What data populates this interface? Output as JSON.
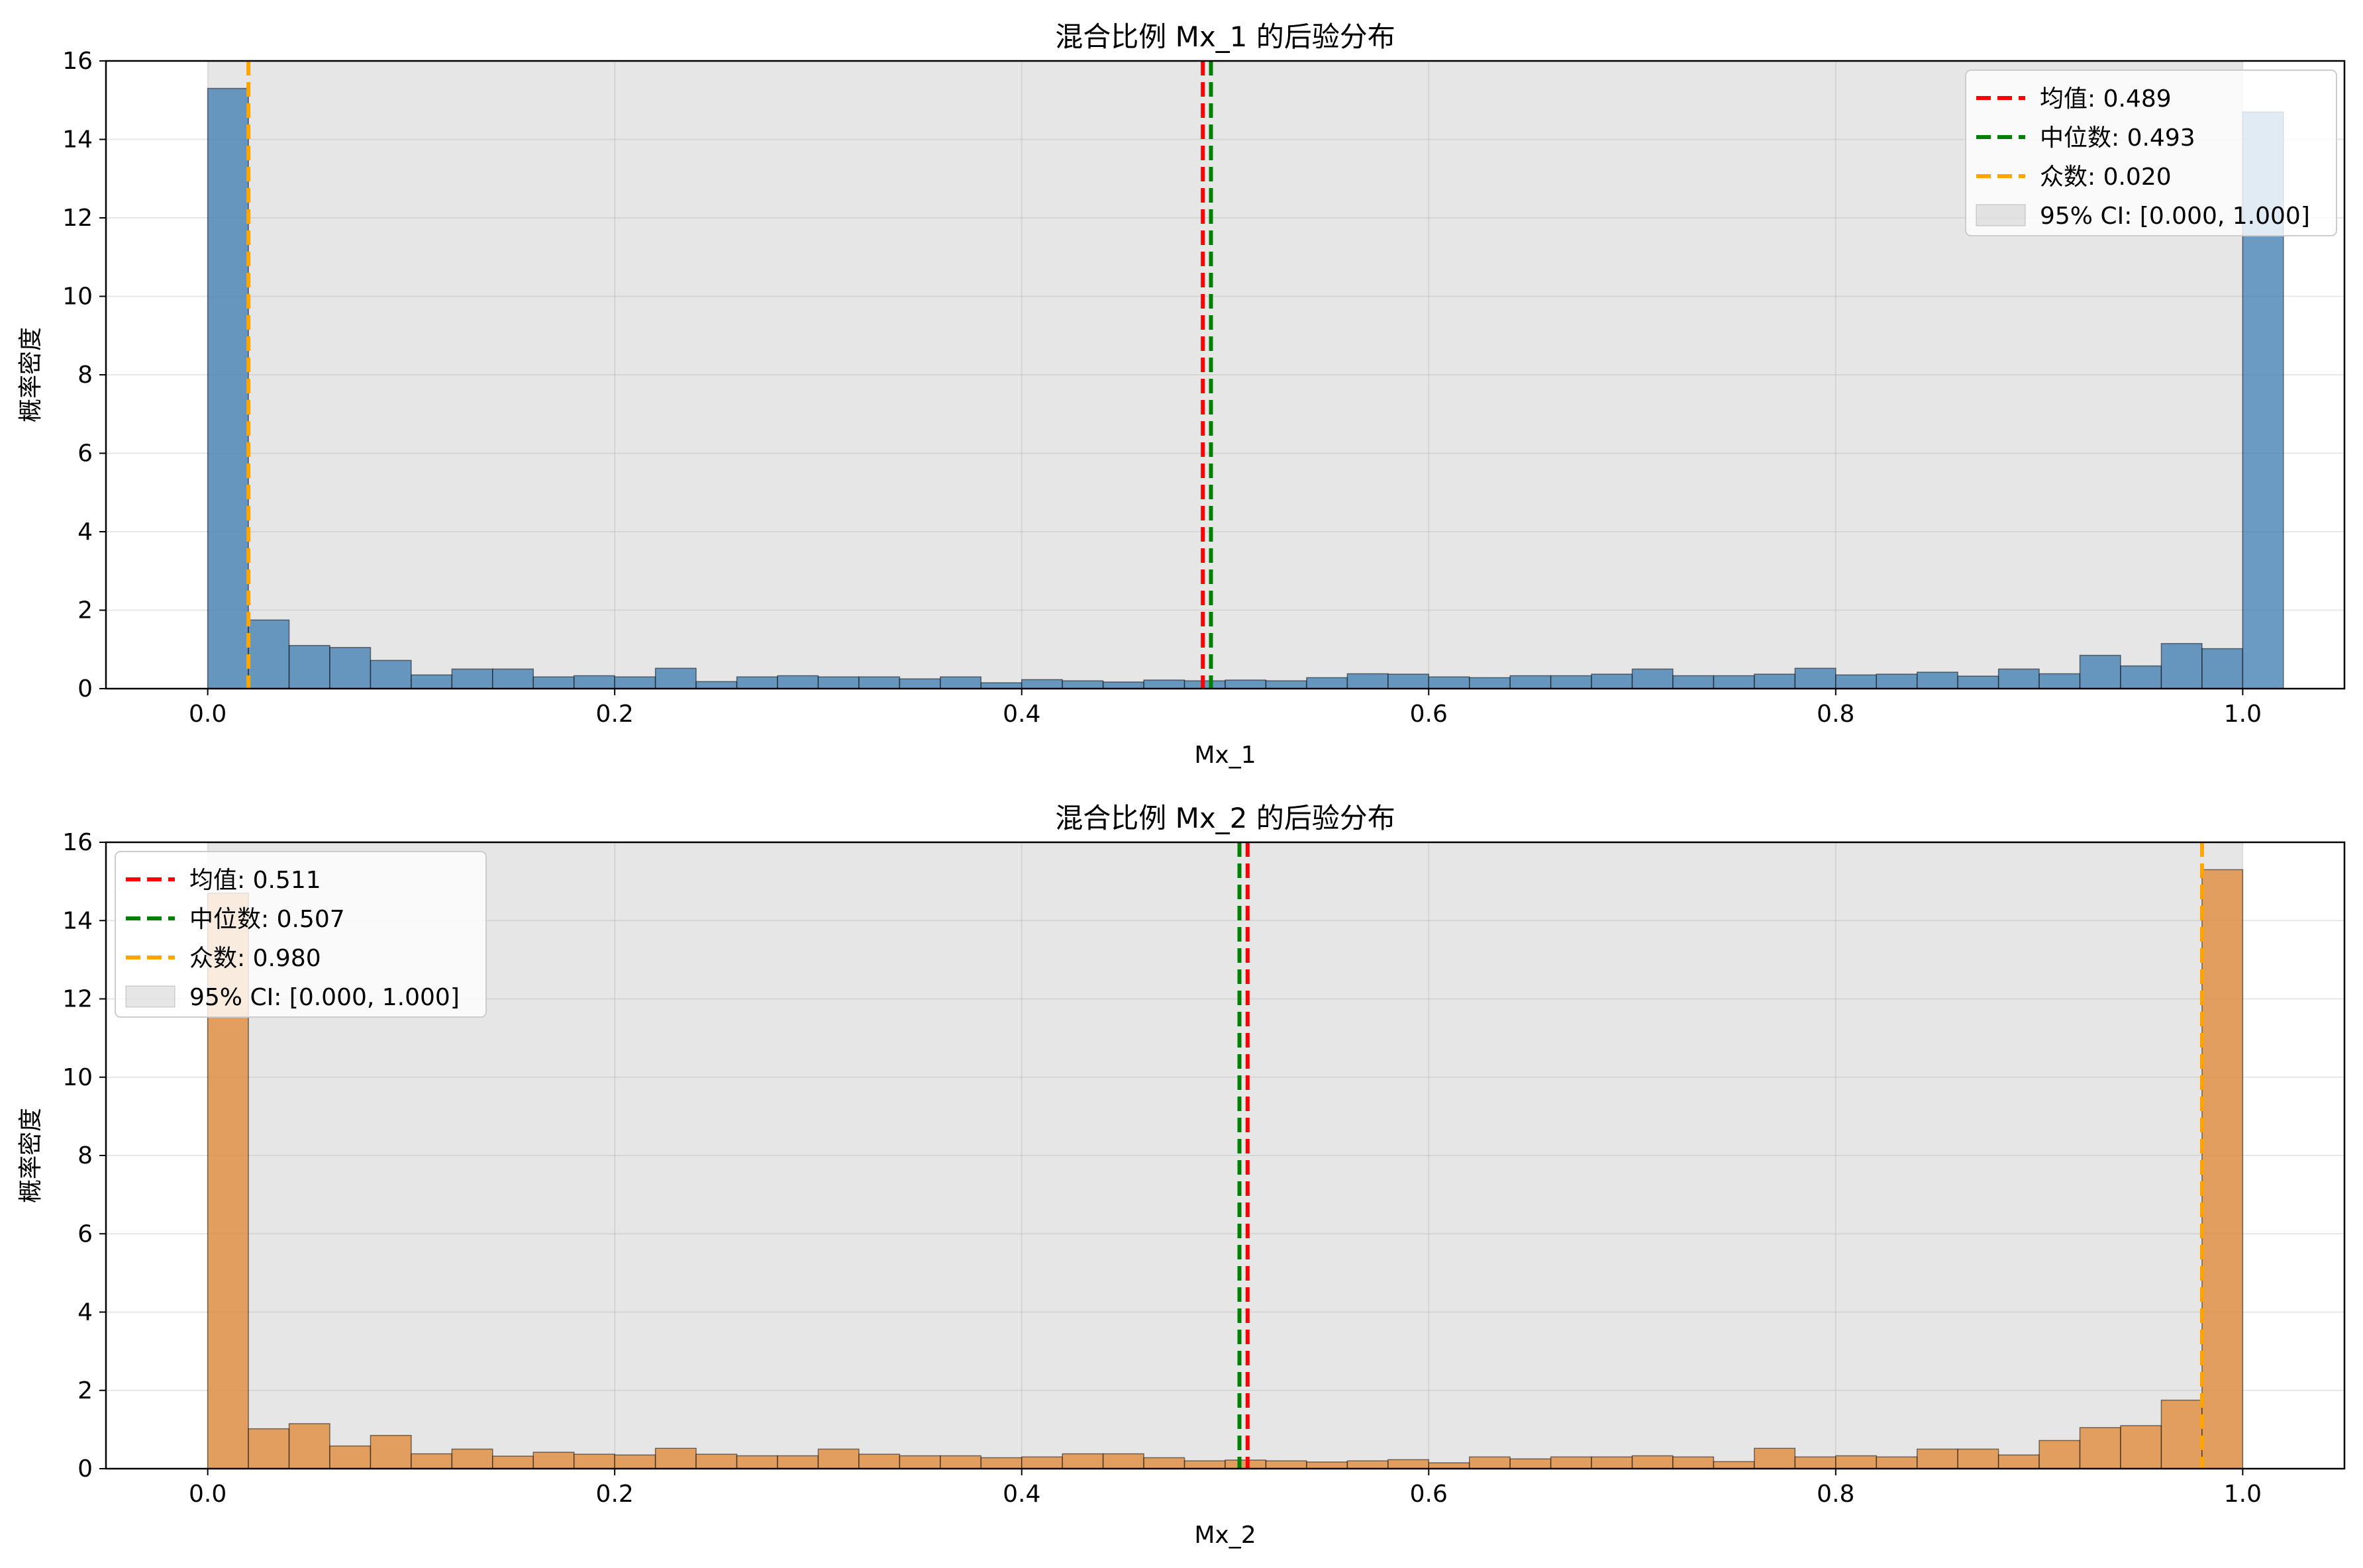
{
  "chart_data": [
    {
      "type": "histogram",
      "title": "混合比例 Mx_1 的后验分布",
      "xlabel": "Mx_1",
      "ylabel": "概率密度",
      "xlim": [
        -0.05,
        1.05
      ],
      "ylim": [
        0,
        16
      ],
      "xticks": [
        "0.0",
        "0.2",
        "0.4",
        "0.6",
        "0.8",
        "1.0"
      ],
      "yticks": [
        "0",
        "2",
        "4",
        "6",
        "8",
        "10",
        "12",
        "14",
        "16"
      ],
      "grid": true,
      "legend_position": "upper right",
      "bar_color": "#4682b4",
      "bin_width": 0.02,
      "bin_start": 0.0,
      "values": [
        15.3,
        1.75,
        1.1,
        1.05,
        0.72,
        0.35,
        0.5,
        0.5,
        0.3,
        0.33,
        0.3,
        0.52,
        0.18,
        0.3,
        0.33,
        0.3,
        0.3,
        0.25,
        0.3,
        0.15,
        0.23,
        0.2,
        0.17,
        0.22,
        0.2,
        0.22,
        0.2,
        0.28,
        0.38,
        0.37,
        0.3,
        0.28,
        0.33,
        0.33,
        0.37,
        0.5,
        0.33,
        0.33,
        0.37,
        0.52,
        0.35,
        0.37,
        0.42,
        0.32,
        0.5,
        0.38,
        0.85,
        0.58,
        1.15,
        1.02,
        14.7
      ],
      "lines": [
        {
          "label": "均值: 0.489",
          "x": 0.489,
          "color": "#ff0000"
        },
        {
          "label": "中位数: 0.493",
          "x": 0.493,
          "color": "#008000"
        },
        {
          "label": "众数: 0.020",
          "x": 0.02,
          "color": "#ffa500"
        }
      ],
      "ci": {
        "label": "95% CI: [0.000, 1.000]",
        "low": 0.0,
        "high": 1.0,
        "color": "#808080"
      }
    },
    {
      "type": "histogram",
      "title": "混合比例 Mx_2 的后验分布",
      "xlabel": "Mx_2",
      "ylabel": "概率密度",
      "xlim": [
        -0.05,
        1.05
      ],
      "ylim": [
        0,
        16
      ],
      "xticks": [
        "0.0",
        "0.2",
        "0.4",
        "0.6",
        "0.8",
        "1.0"
      ],
      "yticks": [
        "0",
        "2",
        "4",
        "6",
        "8",
        "10",
        "12",
        "14",
        "16"
      ],
      "grid": true,
      "legend_position": "upper left",
      "bar_color": "#e08c3c",
      "bin_width": 0.02,
      "bin_start": 0.0,
      "values": [
        14.7,
        1.02,
        1.15,
        0.58,
        0.85,
        0.38,
        0.5,
        0.32,
        0.42,
        0.37,
        0.35,
        0.52,
        0.37,
        0.33,
        0.33,
        0.5,
        0.37,
        0.33,
        0.33,
        0.28,
        0.3,
        0.38,
        0.38,
        0.28,
        0.2,
        0.22,
        0.2,
        0.17,
        0.2,
        0.23,
        0.15,
        0.3,
        0.25,
        0.3,
        0.3,
        0.33,
        0.3,
        0.18,
        0.52,
        0.3,
        0.33,
        0.3,
        0.5,
        0.5,
        0.35,
        0.72,
        1.05,
        1.1,
        1.75,
        15.3
      ],
      "lines": [
        {
          "label": "均值: 0.511",
          "x": 0.511,
          "color": "#ff0000"
        },
        {
          "label": "中位数: 0.507",
          "x": 0.507,
          "color": "#008000"
        },
        {
          "label": "众数: 0.980",
          "x": 0.98,
          "color": "#ffa500"
        }
      ],
      "ci": {
        "label": "95% CI: [0.000, 1.000]",
        "low": 0.0,
        "high": 1.0,
        "color": "#808080"
      }
    }
  ]
}
